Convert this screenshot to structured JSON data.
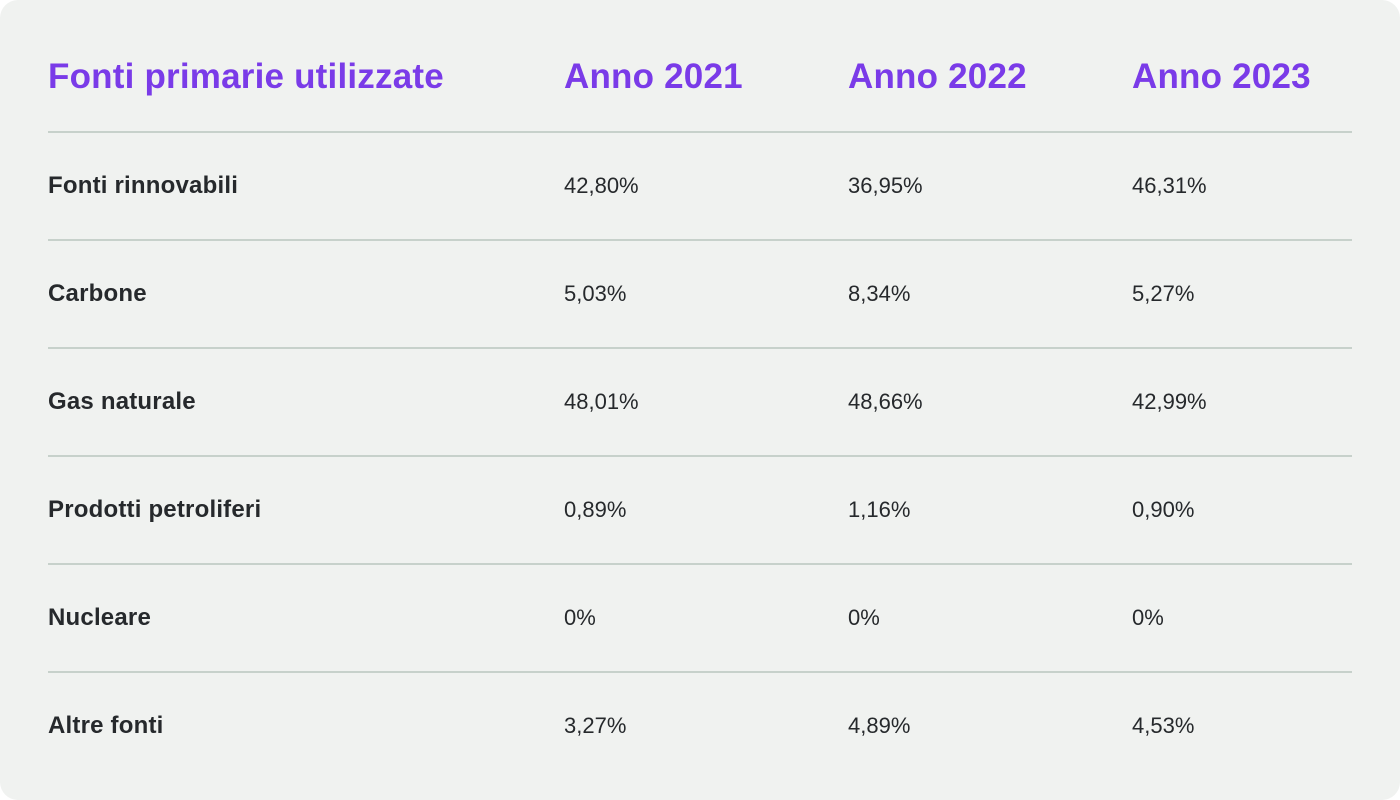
{
  "page": {
    "panel_bg": "#f0f2f0",
    "accent": "#7a3be8",
    "divider_color": "#c7d1cb",
    "text_dark": "#26292c"
  },
  "table": {
    "title": "Fonti primarie utilizzate",
    "columns": [
      "Anno 2021",
      "Anno 2022",
      "Anno 2023"
    ],
    "rows": [
      {
        "label": "Fonti rinnovabili",
        "values": [
          "42,80%",
          "36,95%",
          "46,31%"
        ]
      },
      {
        "label": "Carbone",
        "values": [
          "5,03%",
          "8,34%",
          "5,27%"
        ]
      },
      {
        "label": "Gas naturale",
        "values": [
          "48,01%",
          "48,66%",
          "42,99%"
        ]
      },
      {
        "label": "Prodotti petroliferi",
        "values": [
          "0,89%",
          "1,16%",
          "0,90%"
        ]
      },
      {
        "label": "Nucleare",
        "values": [
          "0%",
          "0%",
          "0%"
        ]
      },
      {
        "label": "Altre fonti",
        "values": [
          "3,27%",
          "4,89%",
          "4,53%"
        ]
      }
    ]
  },
  "chart_data": {
    "type": "table",
    "title": "Fonti primarie utilizzate",
    "columns": [
      "Anno 2021",
      "Anno 2022",
      "Anno 2023"
    ],
    "row_labels": [
      "Fonti rinnovabili",
      "Carbone",
      "Gas naturale",
      "Prodotti petroliferi",
      "Nucleare",
      "Altre fonti"
    ],
    "series": [
      {
        "name": "Anno 2021",
        "values": [
          42.8,
          5.03,
          48.01,
          0.89,
          0,
          3.27
        ]
      },
      {
        "name": "Anno 2022",
        "values": [
          36.95,
          8.34,
          48.66,
          1.16,
          0,
          4.89
        ]
      },
      {
        "name": "Anno 2023",
        "values": [
          46.31,
          5.27,
          42.99,
          0.9,
          0,
          4.53
        ]
      }
    ],
    "unit": "percent",
    "decimal_separator": ","
  }
}
